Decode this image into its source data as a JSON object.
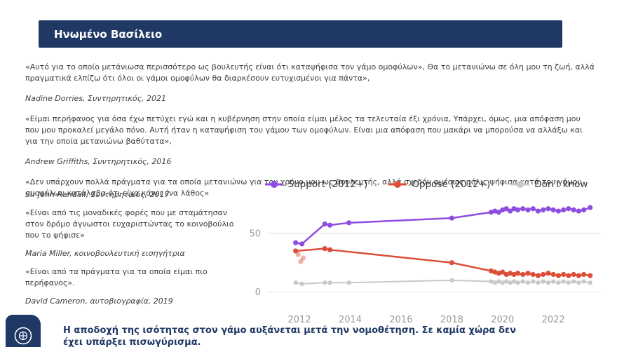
{
  "colors": {
    "navy": "#1f3864",
    "text": "#3d3d3d",
    "axis": "#9a9a9a",
    "grid": "#e2e2e2",
    "support": "#8e4ce0",
    "oppose": "#db4f38",
    "dont_know": "#c9c9c9"
  },
  "header": {
    "title": "Ηνωμένο Βασίλειο"
  },
  "quotes": [
    {
      "text": "«Αυτό για το οποίο μετάνιωσα περισσότερο ως βουλευτής είναι ότι καταψήφισα τον γάμο ομοφύλων», Θα το μετανιώνω σε όλη μου τη ζωή, αλλά πραγματικά ελπίζω ότι όλοι οι γάμοι ομοφύλων θα διαρκέσουν ευτυχισμένοι για πάντα»,",
      "attribution": "Nadine Dorries, Συντηρητικός, 2021"
    },
    {
      "text": "«Είμαι περήφανος για όσα έχω πετύχει εγώ και η κυβέρνηση στην οποία είμαι μέλος τα τελευταία έξι χρόνια, Υπάρχει, όμως, μια απόφαση μου που μου προκαλεί μεγάλο πόνο. Αυτή ήταν η καταψήφιση του γάμου των ομοφύλων. Είναι μια απόφαση που μακάρι να μπορούσα να αλλάξω και για την οποία μετανιώνω βαθύτατα»,",
      "attribution": "Andrew Griffiths, Συντηρητικός, 2016"
    },
    {
      "text": "«Δεν υπάρχουν πολλά πράγματα για τα οποία μετανιώνω για τον χρόνο μου ως βουλευτής, αλλά σχεδόν αμέσως μόλις ψήφισα κατά του γάμου ομοφύλων κατάλαβα ότι είχα κάνει ένα λάθος»",
      "attribution": "Sir John Randall, Συντηρητικός, 2017"
    },
    {
      "text": "«Είναι από τις μοναδικές φορές που με σταμάτησαν στον δρόμο άγνωστοι ευχαριστώντας το κοινοβούλιο που το ψήφισε»",
      "attribution": "Maria Miller, κοινοβουλευτική εισηγήτρια"
    },
    {
      "text": "«Είναι από τα πράγματα για τα οποία είμαι πιο περήφανος».",
      "attribution": "David Cameron, αυτοβιογραφία, 2019"
    }
  ],
  "footer": {
    "statement": "Η αποδοχή της ισότητας στον γάμο αυξάνεται μετά την νομοθέτηση. Σε καμία χώρα δεν έχει υπάρξει πισωγύρισμα.",
    "emblem_icon": "government-emblem"
  },
  "chart_data": {
    "type": "line",
    "title": "",
    "xlabel": "",
    "ylabel": "",
    "legend_position": "top",
    "grid": "horizontal (0 and 50 only)",
    "xlim": [
      2010.7,
      2023.9
    ],
    "ylim": [
      -8,
      78
    ],
    "x_ticks": [
      2012,
      2014,
      2016,
      2018,
      2020,
      2022
    ],
    "y_ticks": [
      0,
      50
    ],
    "series": [
      {
        "name": "Support (2012+)",
        "color": "#8e4ce0",
        "width": 2.5,
        "dot": 3.6,
        "points": [
          [
            2011.85,
            42
          ],
          [
            2012.1,
            41
          ],
          [
            2013.0,
            58
          ],
          [
            2013.2,
            57
          ],
          [
            2013.95,
            59
          ],
          [
            2018.0,
            63
          ],
          [
            2019.55,
            68
          ],
          [
            2019.7,
            69
          ],
          [
            2019.85,
            68
          ],
          [
            2020.0,
            70
          ],
          [
            2020.15,
            71
          ],
          [
            2020.3,
            69
          ],
          [
            2020.45,
            71
          ],
          [
            2020.6,
            70
          ],
          [
            2020.8,
            71
          ],
          [
            2021.0,
            70
          ],
          [
            2021.2,
            71
          ],
          [
            2021.4,
            69
          ],
          [
            2021.6,
            70
          ],
          [
            2021.8,
            71
          ],
          [
            2022.0,
            70
          ],
          [
            2022.2,
            69
          ],
          [
            2022.4,
            70
          ],
          [
            2022.6,
            71
          ],
          [
            2022.8,
            70
          ],
          [
            2023.0,
            69
          ],
          [
            2023.2,
            70
          ],
          [
            2023.45,
            72
          ]
        ]
      },
      {
        "name": "Oppose (2012+)",
        "color": "#db4f38",
        "width": 2.5,
        "dot": 3.6,
        "points": [
          [
            2011.85,
            35
          ],
          [
            2013.0,
            37
          ],
          [
            2013.2,
            36
          ],
          [
            2018.0,
            25
          ],
          [
            2019.55,
            18
          ],
          [
            2019.7,
            17
          ],
          [
            2019.85,
            16
          ],
          [
            2020.0,
            17
          ],
          [
            2020.15,
            15
          ],
          [
            2020.3,
            16
          ],
          [
            2020.45,
            15
          ],
          [
            2020.6,
            16
          ],
          [
            2020.8,
            15
          ],
          [
            2021.0,
            16
          ],
          [
            2021.2,
            15
          ],
          [
            2021.4,
            14
          ],
          [
            2021.6,
            15
          ],
          [
            2021.8,
            16
          ],
          [
            2022.0,
            15
          ],
          [
            2022.2,
            14
          ],
          [
            2022.4,
            15
          ],
          [
            2022.6,
            14
          ],
          [
            2022.8,
            15
          ],
          [
            2023.0,
            14
          ],
          [
            2023.2,
            15
          ],
          [
            2023.45,
            14
          ]
        ],
        "faded_points": [
          [
            2011.95,
            32
          ],
          [
            2012.15,
            29
          ],
          [
            2012.05,
            26
          ]
        ]
      },
      {
        "name": "Don't know",
        "color": "#c9c9c9",
        "width": 2,
        "dot": 3.2,
        "points": [
          [
            2011.85,
            8
          ],
          [
            2012.1,
            7
          ],
          [
            2013.0,
            8
          ],
          [
            2013.2,
            8
          ],
          [
            2013.95,
            8
          ],
          [
            2018.0,
            10
          ],
          [
            2019.55,
            9
          ],
          [
            2019.7,
            8
          ],
          [
            2019.85,
            9
          ],
          [
            2020.0,
            8
          ],
          [
            2020.15,
            9
          ],
          [
            2020.3,
            8
          ],
          [
            2020.45,
            9
          ],
          [
            2020.6,
            8
          ],
          [
            2020.8,
            9
          ],
          [
            2021.0,
            8
          ],
          [
            2021.2,
            9
          ],
          [
            2021.4,
            8
          ],
          [
            2021.6,
            9
          ],
          [
            2021.8,
            8
          ],
          [
            2022.0,
            9
          ],
          [
            2022.2,
            8
          ],
          [
            2022.4,
            9
          ],
          [
            2022.6,
            8
          ],
          [
            2022.8,
            9
          ],
          [
            2023.0,
            8
          ],
          [
            2023.2,
            9
          ],
          [
            2023.45,
            8
          ]
        ]
      }
    ]
  }
}
